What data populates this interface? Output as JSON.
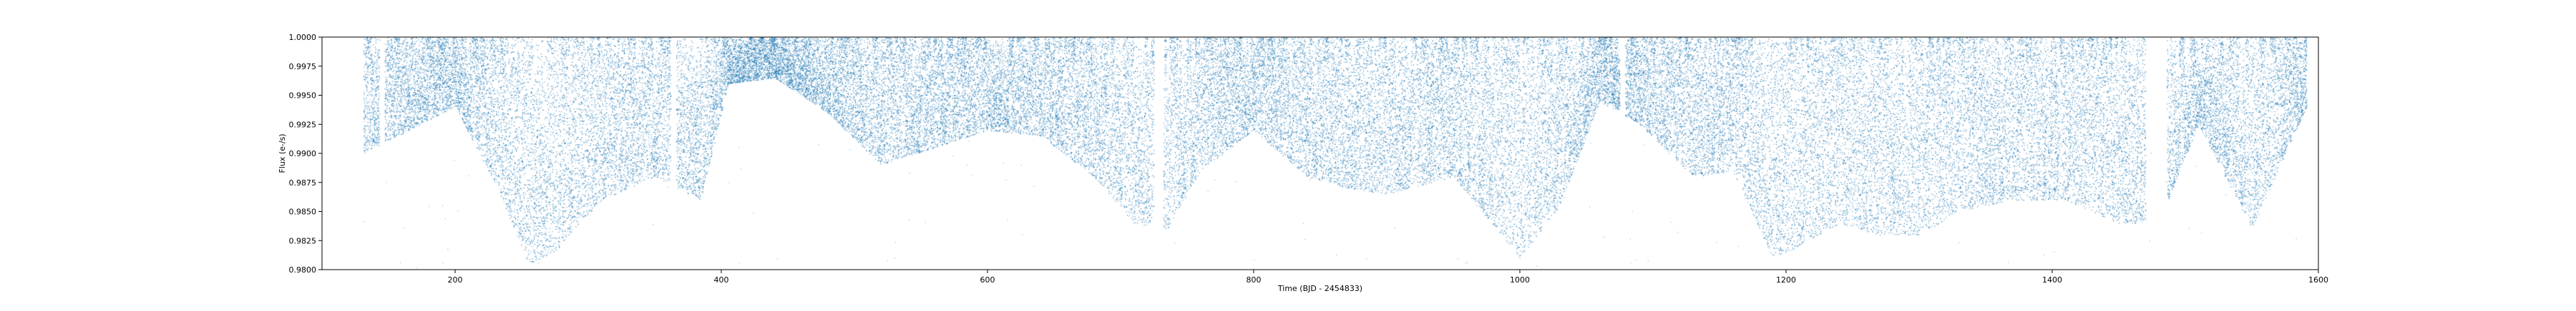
{
  "chart_data": {
    "type": "scatter",
    "title": "",
    "xlabel": "Time (BJD - 2454833)",
    "ylabel": "Flux (e-/s)",
    "xlim": [
      100,
      1600
    ],
    "ylim": [
      0.98,
      1.0
    ],
    "x_ticks": [
      "200",
      "400",
      "600",
      "800",
      "1000",
      "1200",
      "1400",
      "1600"
    ],
    "y_ticks": [
      "0.9800",
      "0.9825",
      "0.9850",
      "0.9875",
      "0.9900",
      "0.9925",
      "0.9950",
      "0.9975",
      "1.0000"
    ],
    "grid": false,
    "legend": "none",
    "marker_color": "#1f77b4",
    "x_range_of_data": [
      131,
      1591
    ],
    "n_points_approx": 65000,
    "envelope_points": {
      "x": [
        131,
        165,
        200,
        232,
        255,
        275,
        310,
        350,
        385,
        405,
        440,
        480,
        520,
        560,
        600,
        640,
        680,
        710,
        735,
        760,
        800,
        840,
        870,
        900,
        950,
        1000,
        1030,
        1060,
        1090,
        1130,
        1160,
        1190,
        1210,
        1240,
        1270,
        1300,
        1330,
        1370,
        1410,
        1450,
        1480,
        1510,
        1550,
        1591
      ],
      "y": [
        0.99,
        0.992,
        0.994,
        0.987,
        0.9805,
        0.9815,
        0.986,
        0.988,
        0.986,
        0.996,
        0.9965,
        0.9935,
        0.989,
        0.9905,
        0.992,
        0.9915,
        0.988,
        0.984,
        0.9835,
        0.9885,
        0.992,
        0.988,
        0.987,
        0.9865,
        0.988,
        0.981,
        0.9855,
        0.9945,
        0.9925,
        0.988,
        0.9885,
        0.981,
        0.982,
        0.984,
        0.983,
        0.983,
        0.985,
        0.986,
        0.986,
        0.984,
        0.984,
        0.9925,
        0.9835,
        0.994
      ]
    }
  }
}
